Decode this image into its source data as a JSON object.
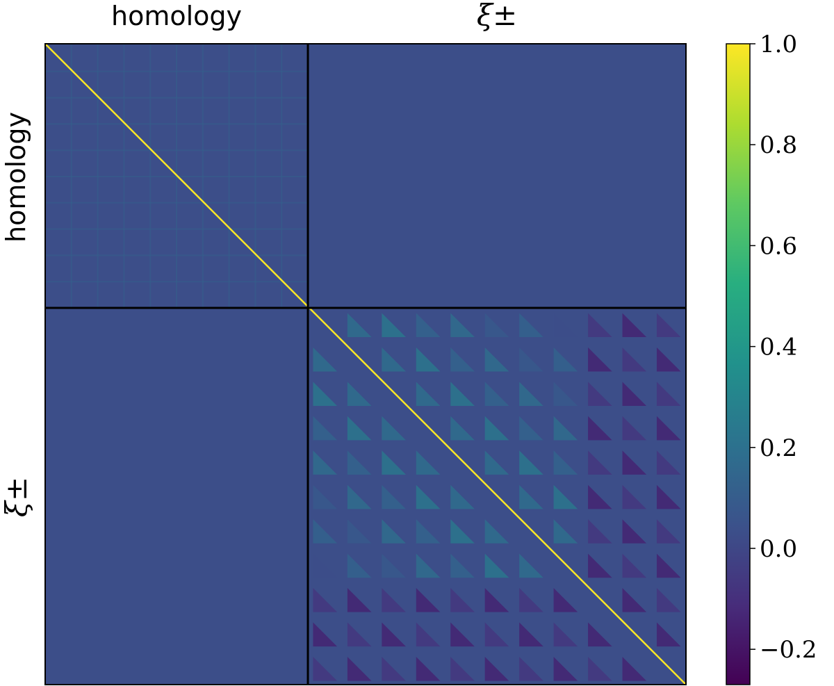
{
  "chart_data": {
    "type": "heatmap",
    "title": "",
    "block_labels": {
      "columns": [
        "homology",
        "ξ±"
      ],
      "rows": [
        "homology",
        "ξ±"
      ]
    },
    "block_fraction_first": 0.41,
    "diagonal_value": 1.0,
    "background_value": 0.0,
    "colormap": "viridis",
    "colorbar": {
      "vmin": -0.27,
      "vmax": 1.0,
      "ticks": [
        1.0,
        0.8,
        0.6,
        0.4,
        0.2,
        0.0,
        -0.2
      ],
      "tick_labels": [
        "1.0",
        "0.8",
        "0.6",
        "0.4",
        "0.2",
        "0.0",
        "−0.2"
      ],
      "placement": "right"
    },
    "sub_grid_xi": 11,
    "grid": false
  }
}
